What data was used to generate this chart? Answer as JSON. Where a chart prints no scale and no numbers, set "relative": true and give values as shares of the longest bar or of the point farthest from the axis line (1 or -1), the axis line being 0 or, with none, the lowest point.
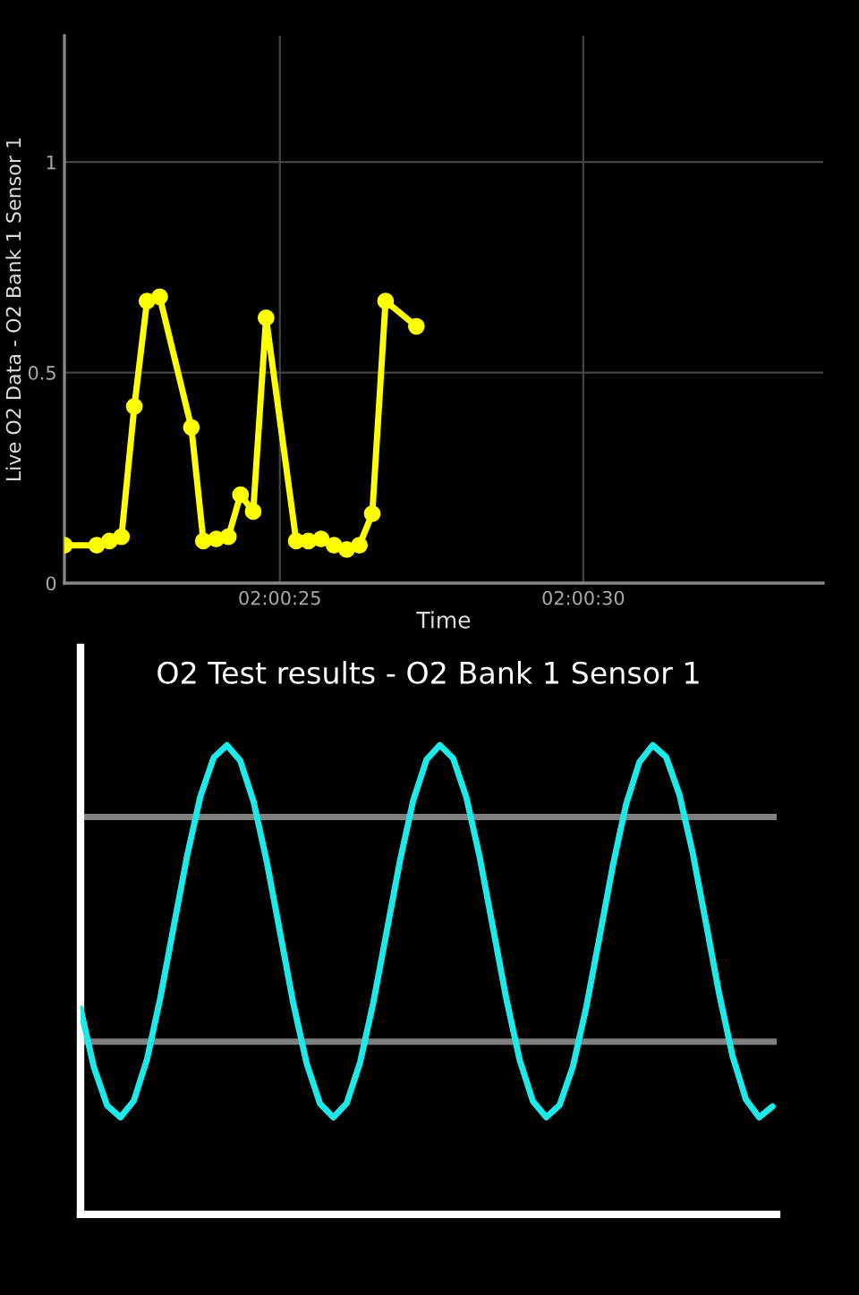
{
  "chart_data": [
    {
      "type": "line",
      "xlabel": "Time",
      "ylabel": "Live O2 Data - O2 Bank 1 Sensor 1",
      "marker": "circle",
      "line_style": "solid",
      "grid": true,
      "x": [
        2.005958,
        2.006106,
        2.006164,
        2.006219,
        2.006278,
        2.006336,
        2.006394,
        2.006539,
        2.006594,
        2.006653,
        2.006708,
        2.006764,
        2.006822,
        2.006881,
        2.007019,
        2.007075,
        2.007133,
        2.007192,
        2.00725,
        2.007308,
        2.007367,
        2.007428,
        2.007569
      ],
      "series": [
        {
          "color": "#ffff00",
          "values": [
            0.09,
            0.09,
            0.1,
            0.11,
            0.42,
            0.67,
            0.68,
            0.37,
            0.1,
            0.105,
            0.11,
            0.21,
            0.17,
            0.63,
            0.1,
            0.1,
            0.105,
            0.09,
            0.08,
            0.09,
            0.165,
            0.67,
            0.61
          ]
        }
      ],
      "xlim": [
        2.005958,
        2.009431
      ],
      "xticks": [
        {
          "value": 2.006944,
          "label": "02:00:25"
        },
        {
          "value": 2.008333,
          "label": "02:00:30"
        }
      ],
      "ylim": [
        0,
        1.3
      ],
      "yticks": [
        0,
        0.5,
        1
      ]
    },
    {
      "type": "line",
      "title": "O2 Test results - O2 Bank 1 Sensor 1",
      "relative": true,
      "marker": "none",
      "line_style": "solid",
      "grid": false,
      "categories": [
        null,
        null,
        null,
        null,
        null,
        null,
        null,
        null,
        null,
        null,
        null,
        null,
        null,
        null,
        null,
        null,
        null,
        null,
        null,
        null,
        null,
        null,
        null,
        null,
        null,
        null,
        null,
        null,
        null,
        null,
        null,
        null,
        null,
        null,
        null,
        null,
        null,
        null,
        null,
        null,
        null,
        null,
        null,
        null,
        null,
        null,
        null,
        null,
        null,
        null,
        null,
        null,
        null
      ],
      "series": [
        {
          "color": "#1de9e9",
          "values": [
            0.439,
            0.314,
            0.232,
            0.207,
            0.242,
            0.331,
            0.462,
            0.613,
            0.763,
            0.89,
            0.973,
            1.0,
            0.967,
            0.88,
            0.751,
            0.6,
            0.448,
            0.321,
            0.236,
            0.207,
            0.237,
            0.323,
            0.451,
            0.602,
            0.753,
            0.882,
            0.969,
            1.0,
            0.972,
            0.888,
            0.761,
            0.61,
            0.459,
            0.329,
            0.241,
            0.207,
            0.233,
            0.315,
            0.441,
            0.591,
            0.743,
            0.874,
            0.964,
            1.0,
            0.975,
            0.895,
            0.771,
            0.621,
            0.469,
            0.337,
            0.245,
            0.207,
            0.23
          ]
        }
      ],
      "ref_lines": [
        {
          "axis": "y",
          "value": 0.847,
          "color": "#808080"
        },
        {
          "axis": "y",
          "value": 0.368,
          "color": "#808080"
        }
      ]
    }
  ]
}
